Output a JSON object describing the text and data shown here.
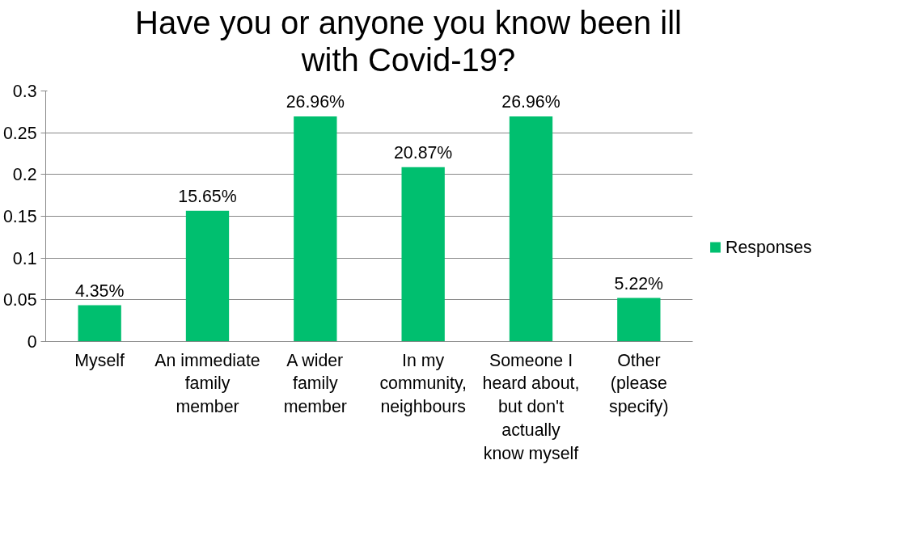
{
  "chart_data": {
    "type": "bar",
    "title": "Have you or anyone you know been ill with Covid-19?",
    "categories": [
      "Myself",
      "An immediate family member",
      "A wider family member",
      "In my community, neighbours",
      "Someone I heard about, but don't actually know myself",
      "Other (please specify)"
    ],
    "series": [
      {
        "name": "Responses",
        "color": "#00bf6f",
        "values": [
          0.0435,
          0.1565,
          0.2696,
          0.2087,
          0.2696,
          0.0522
        ],
        "value_labels": [
          "4.35%",
          "15.65%",
          "26.96%",
          "20.87%",
          "26.96%",
          "5.22%"
        ]
      }
    ],
    "ylim": [
      0,
      0.3
    ],
    "yticks": [
      0,
      0.05,
      0.1,
      0.15,
      0.2,
      0.25,
      0.3
    ],
    "grid": "y",
    "legend": "right"
  }
}
